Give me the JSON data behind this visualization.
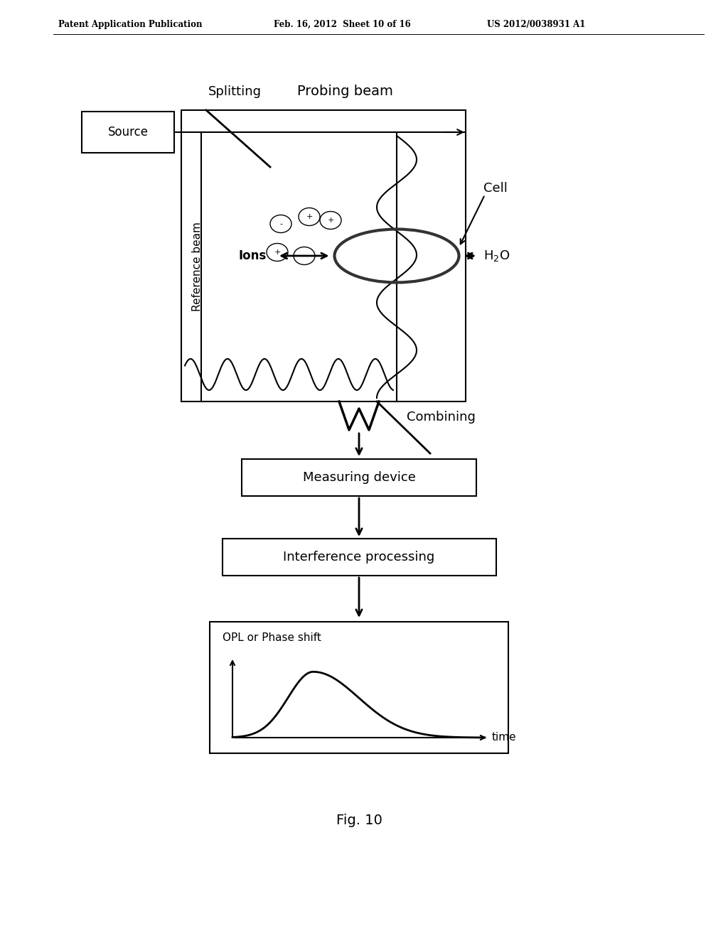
{
  "bg_color": "#ffffff",
  "header_text": "Patent Application Publication",
  "header_date": "Feb. 16, 2012  Sheet 10 of 16",
  "header_patent": "US 2012/0038931 A1",
  "fig_label": "Fig. 10",
  "line_color": "#000000",
  "labels": {
    "splitting": "Splitting",
    "probing_beam": "Probing beam",
    "reference_beam": "Reference beam",
    "source": "Source",
    "cell": "Cell",
    "ions": "Ions",
    "combining": "Combining",
    "measuring_device": "Measuring device",
    "interference_processing": "Interference processing",
    "opl_phase": "OPL or Phase shift",
    "time": "time"
  },
  "ion_positions": [
    [
      3.95,
      10.05,
      "-"
    ],
    [
      4.35,
      10.15,
      "+"
    ],
    [
      4.65,
      10.1,
      "+"
    ],
    [
      3.9,
      9.65,
      "+"
    ],
    [
      4.28,
      9.6,
      "-"
    ]
  ]
}
